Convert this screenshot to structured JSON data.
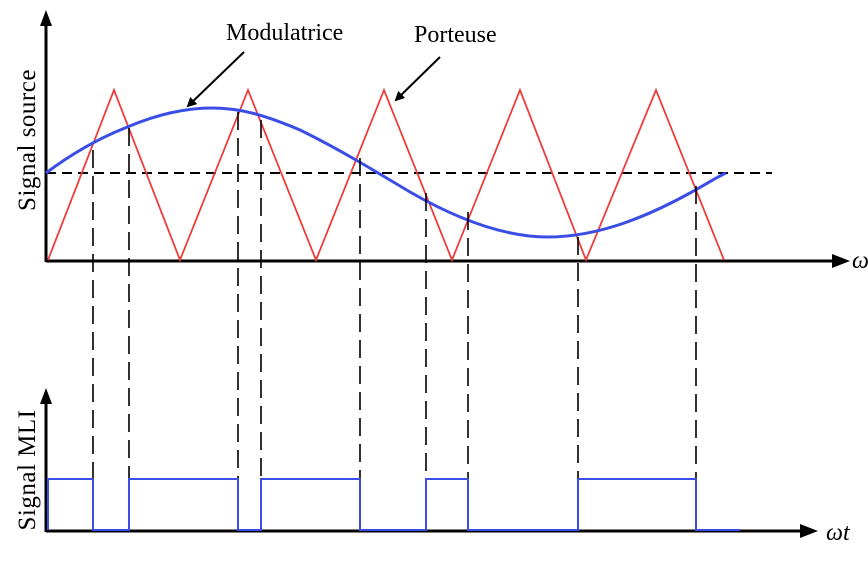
{
  "labels": {
    "modulatrice": "Modulatrice",
    "porteuse": "Porteuse",
    "y_top": "Signal source",
    "y_bottom": "Signal MLI",
    "x_top": "ωt",
    "x_bottom": "ωt"
  },
  "colors": {
    "carrier": "#f03c3c",
    "modulating": "#3a4ee6",
    "pwm": "#3a4ee6",
    "axes": "#000000",
    "guides": "#000000"
  },
  "pwm_levels": [
    {
      "from": 0.0,
      "to": 0.069,
      "level": 1
    },
    {
      "from": 0.069,
      "to": 0.122,
      "level": 0
    },
    {
      "from": 0.122,
      "to": 0.284,
      "level": 1
    },
    {
      "from": 0.284,
      "to": 0.317,
      "level": 0
    },
    {
      "from": 0.317,
      "to": 0.462,
      "level": 1
    },
    {
      "from": 0.462,
      "to": 0.56,
      "level": 0
    },
    {
      "from": 0.56,
      "to": 0.621,
      "level": 1
    },
    {
      "from": 0.621,
      "to": 0.781,
      "level": 0
    },
    {
      "from": 0.781,
      "to": 0.958,
      "level": 1
    },
    {
      "from": 0.958,
      "to": 1.0,
      "level": 0
    }
  ]
}
